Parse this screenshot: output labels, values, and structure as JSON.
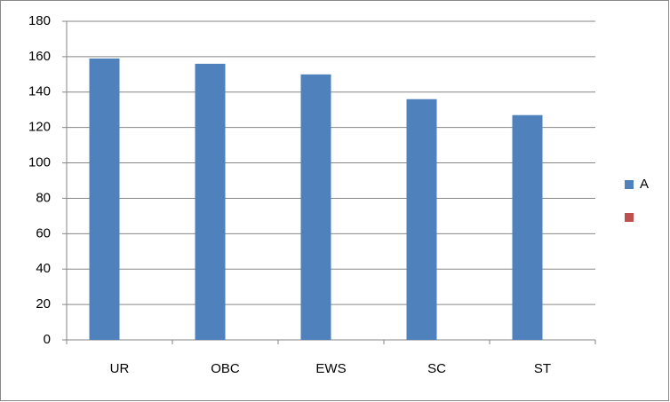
{
  "chart_data": {
    "type": "bar",
    "categories": [
      "UR",
      "OBC",
      "EWS",
      "SC",
      "ST"
    ],
    "series": [
      {
        "name": "A",
        "color": "#4f81bd",
        "values": [
          159,
          156,
          150,
          136,
          127
        ]
      },
      {
        "name": null,
        "color": "#c0504d",
        "values": [
          null,
          null,
          null,
          null,
          null
        ]
      }
    ],
    "ylim": [
      0,
      180
    ],
    "yticks": [
      0,
      20,
      40,
      60,
      80,
      100,
      120,
      140,
      160,
      180
    ],
    "grid": true,
    "legend": "right"
  }
}
